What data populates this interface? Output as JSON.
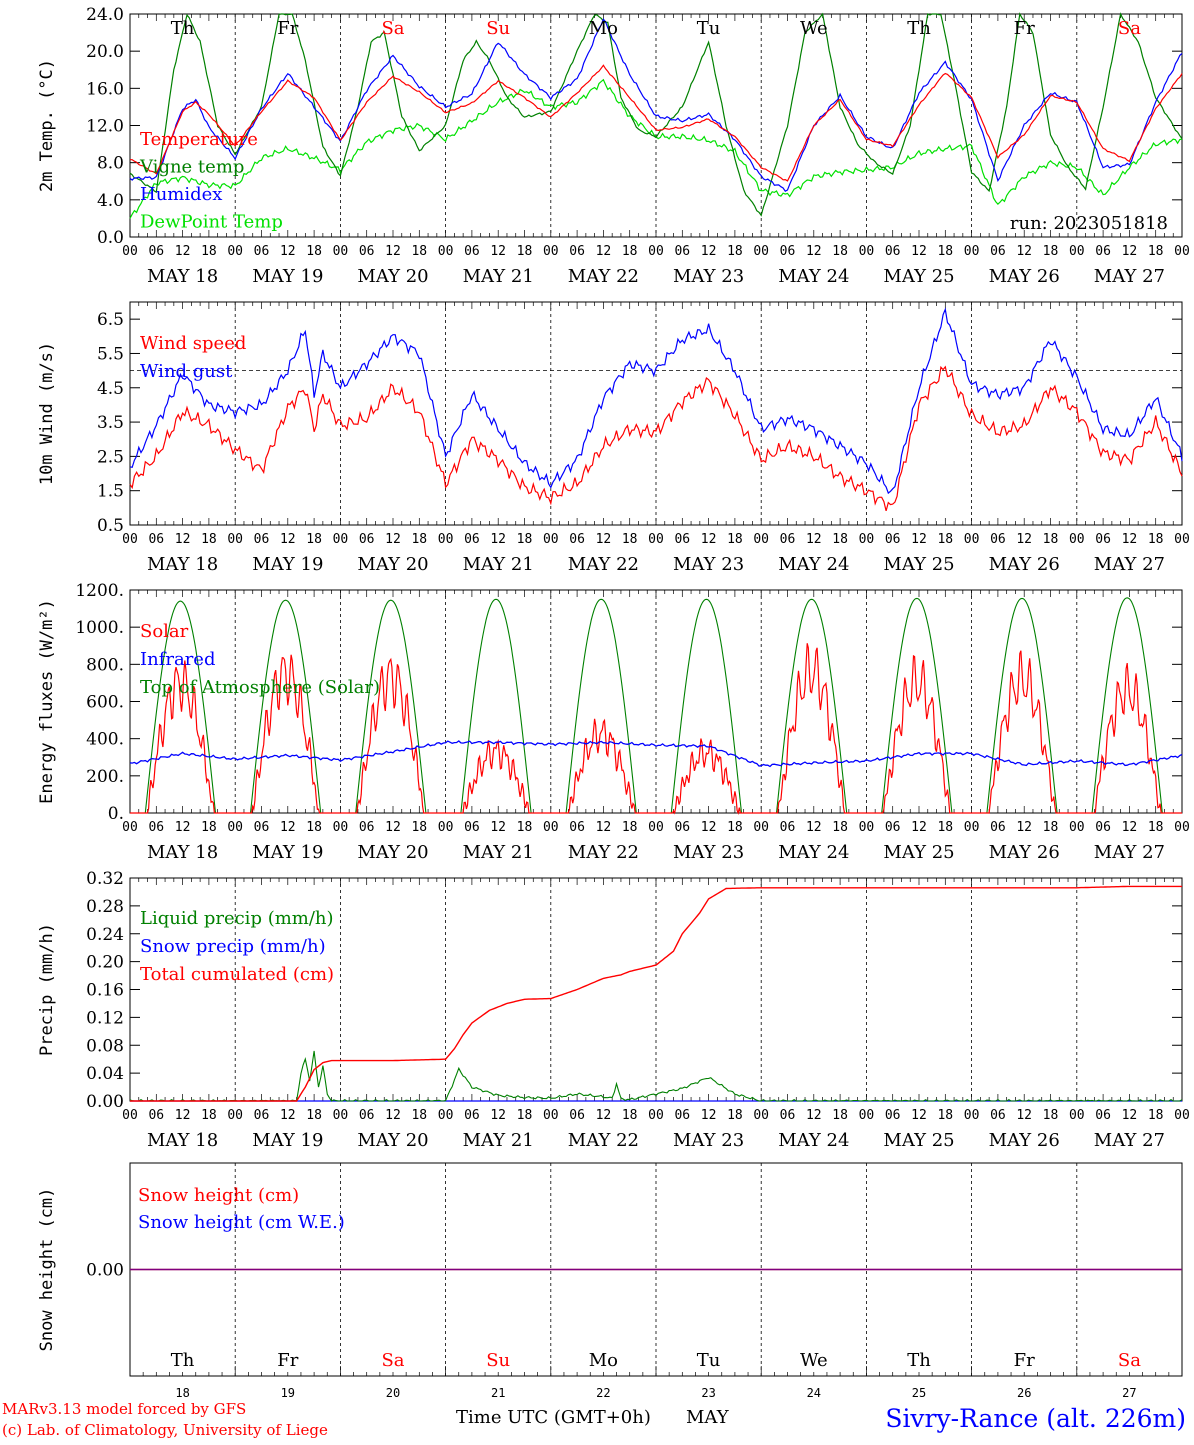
{
  "run_label": "run: 2023051818",
  "days": [
    "Th",
    "Fr",
    "Sa",
    "Su",
    "Mo",
    "Tu",
    "We",
    "Th",
    "Fr",
    "Sa"
  ],
  "weekend_days": [
    2,
    3,
    9
  ],
  "day_numbers": [
    "18",
    "19",
    "20",
    "21",
    "22",
    "23",
    "24",
    "25",
    "26",
    "27"
  ],
  "date_labels": [
    "MAY 18",
    "MAY 19",
    "MAY 20",
    "MAY 21",
    "MAY 22",
    "MAY 23",
    "MAY 24",
    "MAY 25",
    "MAY 26",
    "MAY 27"
  ],
  "hour_labels": [
    "00",
    "06",
    "12",
    "18"
  ],
  "hour_end_label": "00",
  "time_label": "Time UTC (GMT+0h)",
  "month_label": "MAY",
  "footer": {
    "left_line1": "MARv3.13 model forced by GFS",
    "left_line2": "(c) Lab. of Climatology, University of Liege",
    "station": "Sivry-Rance (alt. 226m)"
  },
  "colors": {
    "red": "#ff0000",
    "blue": "#0000ff",
    "green": "#008000",
    "lime": "#00e000",
    "purple": "#7f007f"
  },
  "chart_data": [
    {
      "type": "line",
      "ylabel": "2m Temp. (°C)",
      "ylim": [
        0,
        24
      ],
      "yticks": [
        "0.0",
        "4.0",
        "8.0",
        "12.0",
        "16.0",
        "20.0",
        "24.0"
      ],
      "x_unit": "hours since MAY 18 00 UTC",
      "grid": "vertical dashed day separators",
      "legend_placement": "left",
      "series": [
        {
          "name": "Temperature",
          "color": "red",
          "x": [
            0,
            6,
            12,
            15,
            18,
            24,
            30,
            36,
            42,
            48,
            54,
            60,
            66,
            72,
            78,
            84,
            90,
            96,
            102,
            108,
            114,
            120,
            126,
            132,
            138,
            144,
            150,
            156,
            162,
            168,
            174,
            180,
            186,
            192,
            198,
            204,
            210,
            216,
            222,
            228,
            234,
            240
          ],
          "y": [
            8.4,
            6.8,
            13.5,
            14.5,
            13.2,
            9.8,
            13.5,
            16.8,
            15.0,
            10.4,
            14.5,
            17.3,
            15.6,
            13.4,
            14.4,
            16.8,
            15.0,
            12.9,
            15.5,
            18.4,
            15.0,
            11.5,
            11.8,
            12.7,
            10.8,
            7.5,
            6.0,
            12.0,
            14.8,
            10.5,
            9.8,
            14.2,
            17.7,
            15.0,
            8.6,
            11.0,
            15.2,
            14.5,
            9.5,
            8.2,
            13.8,
            17.6
          ]
        },
        {
          "name": "Vigne temp",
          "color": "green",
          "x": [
            0,
            6,
            10,
            13,
            16,
            20,
            24,
            30,
            34,
            37,
            40,
            44,
            48,
            52,
            55,
            58,
            62,
            66,
            72,
            76,
            79,
            82,
            86,
            90,
            96,
            102,
            106,
            109,
            112,
            116,
            120,
            126,
            132,
            136,
            140,
            144,
            150,
            154,
            158,
            162,
            166,
            170,
            174,
            178,
            182,
            185,
            188,
            192,
            196,
            200,
            203,
            206,
            210,
            214,
            218,
            222,
            226,
            230,
            234,
            240
          ],
          "y": [
            6.8,
            4.9,
            18,
            24,
            21,
            12,
            8.9,
            14,
            24,
            24,
            19,
            9.7,
            6.6,
            14,
            21,
            22,
            13,
            9.3,
            12,
            19,
            21,
            19,
            15,
            12.9,
            13.5,
            20,
            24,
            23,
            15,
            11.5,
            10.8,
            14.0,
            21.0,
            12,
            5,
            2.3,
            12,
            22,
            24,
            14,
            10,
            8,
            6.8,
            12,
            24,
            24,
            17,
            7.0,
            4.9,
            14,
            24,
            22,
            11,
            7.5,
            5.2,
            14,
            24,
            21,
            15,
            10.5
          ]
        },
        {
          "name": "Humidex",
          "color": "blue",
          "x": [
            0,
            6,
            12,
            15,
            18,
            24,
            30,
            36,
            42,
            48,
            54,
            60,
            66,
            72,
            78,
            84,
            90,
            96,
            102,
            108,
            114,
            120,
            126,
            132,
            138,
            144,
            150,
            156,
            162,
            168,
            174,
            180,
            186,
            192,
            198,
            204,
            210,
            216,
            222,
            228,
            234,
            240
          ],
          "y": [
            6.3,
            6.4,
            13.8,
            14.8,
            11.8,
            8.5,
            13.8,
            17.6,
            14.0,
            10.3,
            15.8,
            19.5,
            16.2,
            14.0,
            15.4,
            21.0,
            17.5,
            15.0,
            17.0,
            23.5,
            17.5,
            13.0,
            12.5,
            13.2,
            10.5,
            6.5,
            5.0,
            12.0,
            15.2,
            10.8,
            9.5,
            15.5,
            18.8,
            14.8,
            6.1,
            12.0,
            15.5,
            14.5,
            7.5,
            7.8,
            14.5,
            19.9
          ]
        },
        {
          "name": "DewPoint Temp",
          "color": "lime",
          "x": [
            0,
            6,
            12,
            18,
            24,
            30,
            36,
            42,
            48,
            54,
            60,
            66,
            72,
            78,
            84,
            90,
            96,
            102,
            108,
            114,
            120,
            126,
            132,
            138,
            144,
            150,
            156,
            162,
            168,
            174,
            180,
            186,
            192,
            198,
            204,
            210,
            216,
            222,
            228,
            234,
            240
          ],
          "y": [
            2.0,
            5.8,
            6.4,
            5.6,
            5.5,
            8.5,
            9.5,
            8.5,
            7.2,
            10.2,
            11.5,
            12.0,
            10.5,
            12.5,
            14.5,
            15.8,
            14.0,
            14.5,
            16.8,
            13.0,
            10.8,
            10.8,
            10.4,
            9.2,
            5.0,
            4.5,
            6.5,
            7.0,
            7.2,
            7.5,
            9.0,
            9.5,
            9.8,
            3.4,
            6.5,
            8.0,
            7.5,
            4.5,
            7.5,
            10.0,
            10.5
          ]
        }
      ]
    },
    {
      "type": "line",
      "ylabel": "10m Wind (m/s)",
      "ylim": [
        0.5,
        7.0
      ],
      "yticks": [
        "0.5",
        "1.5",
        "2.5",
        "3.5",
        "4.5",
        "5.5",
        "6.5"
      ],
      "reference_line": 5.0,
      "legend_placement": "left",
      "series": [
        {
          "name": "Wind speed",
          "color": "red",
          "x": [
            0,
            6,
            12,
            18,
            24,
            30,
            36,
            40,
            42,
            44,
            48,
            54,
            60,
            66,
            72,
            78,
            84,
            90,
            96,
            102,
            108,
            114,
            120,
            126,
            132,
            138,
            144,
            150,
            156,
            162,
            168,
            174,
            180,
            186,
            192,
            198,
            204,
            210,
            216,
            222,
            228,
            234,
            240
          ],
          "y": [
            1.7,
            2.5,
            3.8,
            3.4,
            2.7,
            2.1,
            3.9,
            4.5,
            3.3,
            4.3,
            3.4,
            3.6,
            4.5,
            3.8,
            1.7,
            3.0,
            2.4,
            1.6,
            1.3,
            1.7,
            2.8,
            3.3,
            3.2,
            4.1,
            4.7,
            3.7,
            2.4,
            2.8,
            2.5,
            1.9,
            1.5,
            1.0,
            4.0,
            5.1,
            3.7,
            3.2,
            3.4,
            4.5,
            3.8,
            2.6,
            2.4,
            3.5,
            2.0
          ]
        },
        {
          "name": "Wind gust",
          "color": "blue",
          "x": [
            0,
            6,
            12,
            18,
            24,
            30,
            36,
            40,
            42,
            44,
            48,
            54,
            60,
            66,
            72,
            78,
            84,
            90,
            96,
            102,
            108,
            114,
            120,
            126,
            132,
            138,
            144,
            150,
            156,
            162,
            168,
            174,
            180,
            186,
            192,
            198,
            204,
            210,
            216,
            222,
            228,
            234,
            240
          ],
          "y": [
            2.2,
            3.4,
            4.9,
            4.0,
            3.8,
            4.0,
            5.0,
            6.2,
            4.3,
            5.5,
            4.5,
            5.2,
            6.0,
            5.5,
            2.5,
            4.3,
            3.3,
            2.3,
            1.7,
            2.4,
            4.2,
            5.2,
            5.0,
            5.9,
            6.2,
            5.0,
            3.3,
            3.6,
            3.3,
            2.8,
            2.3,
            1.4,
            4.5,
            6.7,
            4.6,
            4.3,
            4.5,
            5.9,
            4.8,
            3.3,
            3.1,
            4.2,
            2.5
          ]
        }
      ]
    },
    {
      "type": "line",
      "ylabel": "Energy fluxes (W/m²)",
      "ylim": [
        0,
        1200
      ],
      "yticks": [
        "0.",
        "200.",
        "400.",
        "600.",
        "800.",
        "1000.",
        "1200."
      ],
      "legend_placement": "left",
      "series": [
        {
          "name": "Solar",
          "color": "red",
          "daily_peak": [
            820,
            880,
            860,
            390,
            500,
            380,
            900,
            830,
            850,
            780
          ]
        },
        {
          "name": "Infrared",
          "color": "blue",
          "x": [
            0,
            12,
            24,
            36,
            48,
            60,
            72,
            84,
            96,
            108,
            120,
            132,
            144,
            156,
            168,
            180,
            192,
            204,
            216,
            228,
            240
          ],
          "y": [
            265,
            320,
            290,
            310,
            285,
            330,
            380,
            380,
            370,
            380,
            365,
            360,
            255,
            270,
            280,
            320,
            320,
            260,
            280,
            260,
            310
          ]
        },
        {
          "name": "Top of Atmosphere (Solar)",
          "color": "green",
          "daily_peak": [
            1140,
            1145,
            1145,
            1150,
            1150,
            1150,
            1150,
            1155,
            1155,
            1158
          ]
        }
      ]
    },
    {
      "type": "line",
      "ylabel": "Precip (mm/h)",
      "ylim": [
        0,
        0.32
      ],
      "yticks": [
        "0.00",
        "0.04",
        "0.08",
        "0.12",
        "0.16",
        "0.20",
        "0.24",
        "0.28",
        "0.32"
      ],
      "legend_placement": "top-left",
      "series": [
        {
          "name": "Liquid precip (mm/h)",
          "color": "green",
          "x": [
            0,
            38,
            39,
            40,
            41,
            42,
            43,
            44,
            45,
            46,
            48,
            72,
            74,
            75,
            78,
            84,
            90,
            96,
            102,
            108,
            110,
            111,
            112,
            114,
            120,
            126,
            132,
            138,
            144,
            240
          ],
          "y": [
            0,
            0,
            0.04,
            0.06,
            0.03,
            0.07,
            0.02,
            0.05,
            0.01,
            0,
            0,
            0,
            0.03,
            0.046,
            0.02,
            0.008,
            0.005,
            0.004,
            0.01,
            0.006,
            0.004,
            0.025,
            0.003,
            0.002,
            0.01,
            0.018,
            0.034,
            0.01,
            0,
            0
          ]
        },
        {
          "name": "Snow precip (mm/h)",
          "color": "blue",
          "x": [
            0,
            240
          ],
          "y": [
            0,
            0
          ]
        },
        {
          "name": "Total cumulated (cm)",
          "color": "red",
          "x": [
            0,
            38,
            40,
            42,
            44,
            46,
            48,
            60,
            72,
            74,
            76,
            78,
            82,
            86,
            90,
            96,
            102,
            108,
            112,
            114,
            120,
            124,
            126,
            130,
            132,
            136,
            144,
            168,
            192,
            216,
            228,
            240
          ],
          "y": [
            0,
            0,
            0.02,
            0.045,
            0.055,
            0.058,
            0.058,
            0.058,
            0.06,
            0.075,
            0.095,
            0.112,
            0.13,
            0.14,
            0.146,
            0.147,
            0.16,
            0.176,
            0.181,
            0.186,
            0.195,
            0.215,
            0.24,
            0.27,
            0.29,
            0.305,
            0.306,
            0.306,
            0.306,
            0.306,
            0.308,
            0.308
          ]
        }
      ]
    },
    {
      "type": "line",
      "ylabel": "Snow height (cm)",
      "ylim": [
        -1,
        1
      ],
      "yticks": [
        "0.00"
      ],
      "legend_placement": "top-left",
      "series": [
        {
          "name": "Snow height (cm)",
          "color": "red",
          "x": [
            0,
            240
          ],
          "y": [
            0,
            0
          ]
        },
        {
          "name": "Snow height (cm W.E.)",
          "color": "blue",
          "x": [
            0,
            240
          ],
          "y": [
            0,
            0
          ]
        }
      ]
    }
  ]
}
